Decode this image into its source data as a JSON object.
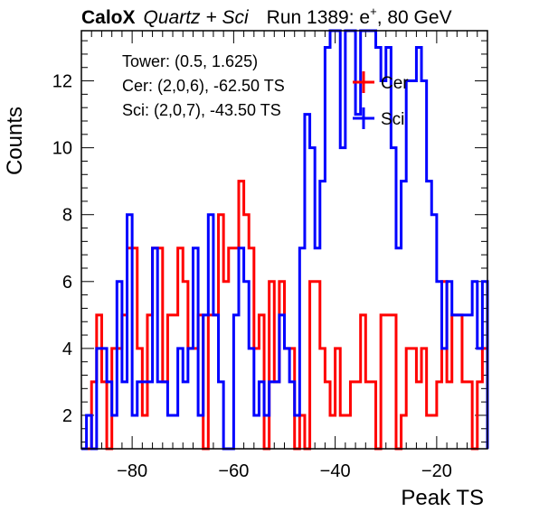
{
  "header": {
    "brand": "CaloX",
    "subtitle": "Quartz + Sci",
    "run_prefix": "Run 1389: e",
    "run_sup": "+",
    "run_suffix": ", 80 GeV"
  },
  "info": {
    "tower": "Tower: (0.5, 1.625)",
    "cer": "Cer: (2,0,6), -62.50 TS",
    "sci": "Sci: (2,0,7), -43.50 TS"
  },
  "legend": {
    "cer": "Cer",
    "sci": "Sci"
  },
  "colors": {
    "cer": "#ff0000",
    "sci": "#0000ff",
    "axis": "#000000"
  },
  "chart_data": {
    "type": "line",
    "xlabel": "Peak TS",
    "ylabel": "Counts",
    "xlim": [
      -90,
      -10
    ],
    "ylim": [
      1,
      13.5
    ],
    "bin_width": 1,
    "x_ticks": [
      -80,
      -60,
      -40,
      -20
    ],
    "x_tick_labels": [
      "−80",
      "−60",
      "−40",
      "−20"
    ],
    "y_ticks": [
      2,
      4,
      6,
      8,
      10,
      12
    ],
    "y_tick_labels": [
      "2",
      "4",
      "6",
      "8",
      "10",
      "12"
    ],
    "series": [
      {
        "name": "Cer",
        "color": "#ff0000",
        "bin_start": -90,
        "counts": [
          1,
          1,
          3,
          5,
          3,
          1,
          4,
          4,
          5,
          7,
          7,
          4,
          2,
          5,
          7,
          7,
          3,
          5,
          5,
          7,
          6,
          4,
          4,
          5,
          1,
          5,
          5,
          8,
          6,
          7,
          7,
          9,
          8,
          7,
          4,
          5,
          1,
          6,
          3,
          6,
          4,
          4,
          1,
          2,
          1,
          6,
          6,
          4,
          3,
          2,
          4,
          2,
          2,
          3,
          3,
          5,
          3,
          3,
          1,
          5,
          5,
          5,
          1,
          2,
          4,
          4,
          3,
          4,
          2,
          2,
          3,
          6,
          3,
          5,
          5,
          3,
          3,
          1,
          3,
          4
        ]
      },
      {
        "name": "Sci",
        "color": "#0000ff",
        "bin_start": -90,
        "counts": [
          1,
          2,
          1,
          4,
          4,
          3,
          2,
          6,
          3,
          8,
          2,
          3,
          3,
          3,
          7,
          3,
          3,
          2,
          2,
          4,
          3,
          4,
          7,
          2,
          5,
          8,
          5,
          3,
          1,
          1,
          5,
          7,
          6,
          4,
          2,
          3,
          2,
          3,
          3,
          5,
          4,
          3,
          2,
          7,
          11,
          10,
          7,
          9,
          13,
          15,
          14,
          10,
          16,
          15,
          11,
          17,
          14,
          14,
          13,
          12,
          13,
          10,
          7,
          9,
          12,
          12,
          13,
          12,
          9,
          8,
          6,
          4,
          6,
          5,
          5,
          5,
          5,
          6,
          4,
          6
        ]
      }
    ],
    "legend_placement": "top-right"
  }
}
